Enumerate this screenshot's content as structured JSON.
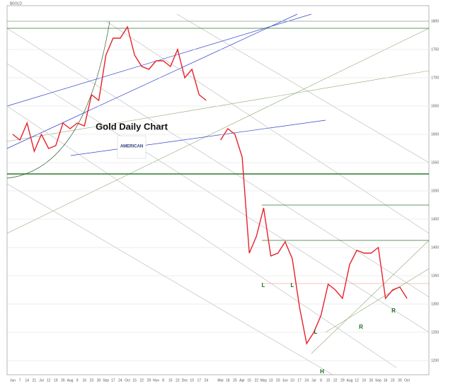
{
  "chart_data": {
    "type": "line",
    "title": "$GOLD",
    "subtitle": "Gold Daily Chart",
    "logo": "AMERICAN",
    "categories": [
      "Jun",
      "7",
      "14",
      "21",
      "Jul",
      "12",
      "19",
      "26",
      "Aug",
      "9",
      "16",
      "23",
      "30",
      "Sep",
      "17",
      "24",
      "Oct",
      "15",
      "22",
      "29",
      "Nov",
      "8",
      "15",
      "22",
      "Dec",
      "10",
      "17",
      "24",
      null,
      "Mar",
      "18",
      "25",
      "Apr",
      "15",
      "22",
      "May",
      "13",
      "20",
      "Jun",
      "10",
      "17",
      "24",
      "Jul",
      "8",
      "15",
      "22",
      "29",
      "Aug",
      "12",
      "19",
      "26",
      "Sep",
      "16",
      "23",
      "30",
      "Oct"
    ],
    "series": [
      {
        "name": "Gold",
        "color": "#e8202a",
        "values": [
          1600,
          1590,
          1620,
          1570,
          1600,
          1575,
          1580,
          1620,
          1610,
          1620,
          1615,
          1670,
          1660,
          1740,
          1770,
          1770,
          1790,
          1740,
          1720,
          1715,
          1730,
          1730,
          1720,
          1750,
          1700,
          1715,
          1670,
          1660,
          null,
          1590,
          1610,
          1600,
          1560,
          1390,
          1420,
          1470,
          1385,
          1390,
          1410,
          1380,
          1295,
          1230,
          1250,
          1280,
          1335,
          1325,
          1310,
          1370,
          1395,
          1390,
          1390,
          1400,
          1310,
          1325,
          1330,
          1310
        ]
      }
    ],
    "ylim": [
      1175,
      1825
    ],
    "yticks": [
      1200,
      1250,
      1300,
      1350,
      1400,
      1450,
      1500,
      1550,
      1600,
      1650,
      1700,
      1750,
      1800
    ],
    "grid": true,
    "annotations": [
      "L",
      "L",
      "L",
      "H",
      "R",
      "R"
    ]
  }
}
